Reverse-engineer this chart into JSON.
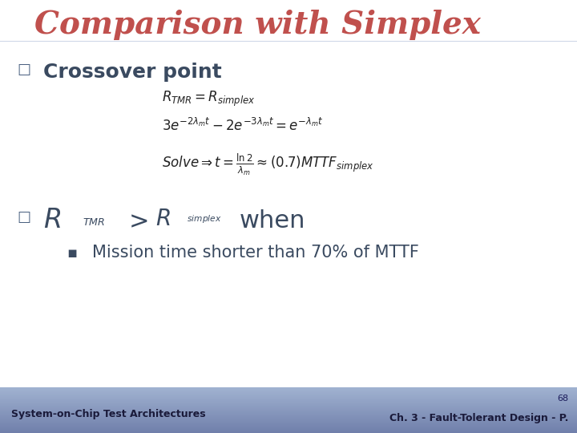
{
  "title": "Comparison with Simplex",
  "title_color": "#c0504d",
  "title_fontsize": 28,
  "bg_color": "#ffffff",
  "footer_bg_color_top": "#8090b8",
  "footer_bg_color_bot": "#6070a8",
  "bullet_color": "#4a6080",
  "text_color": "#3a4a60",
  "footer_text": "System-on-Chip Test Architectures",
  "footer_right": "Ch. 3 - Fault-Tolerant Design - P.",
  "page_number": "68",
  "crossover_label": "Crossover point",
  "eq1": "$R_{TMR} = R_{simplex}$",
  "eq2": "$3e^{-2\\lambda_m t} - 2e^{-3\\lambda_m t} = e^{-\\lambda_m t}$",
  "eq3": "$Solve \\Rightarrow  t = \\frac{\\ln 2}{\\lambda_m} \\approx (0.7)MTTF_{simplex}$",
  "bullet_text": "Mission time shorter than 70% of MTTF"
}
